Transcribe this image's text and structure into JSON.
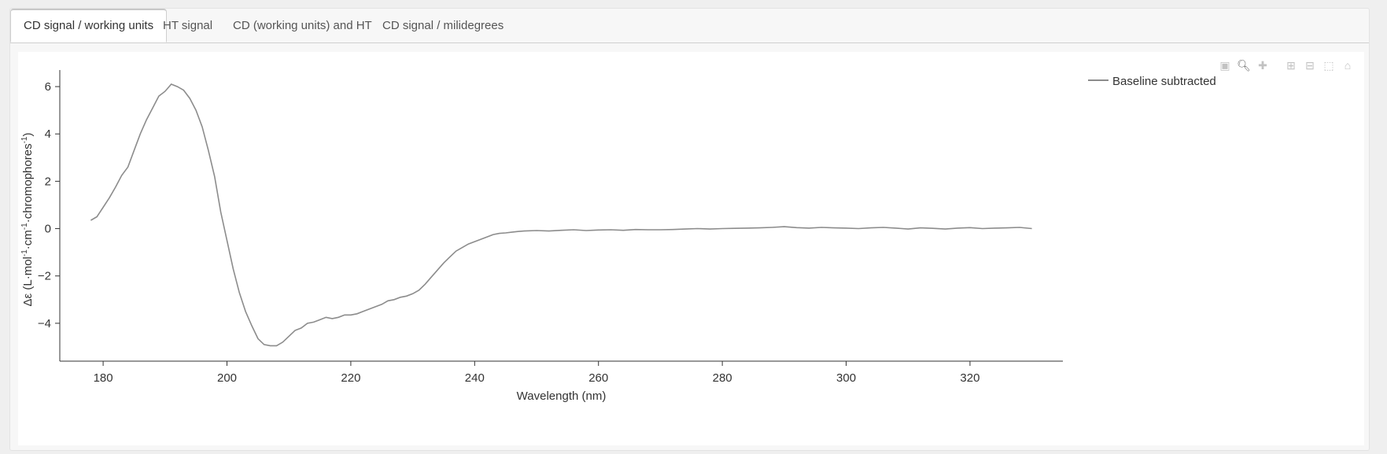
{
  "tabs": [
    {
      "label": "CD signal / working units",
      "active": true
    },
    {
      "label": "HT signal",
      "active": false
    },
    {
      "label": "CD (working units) and HT",
      "active": false
    },
    {
      "label": "CD signal / milidegrees",
      "active": false
    }
  ],
  "modebar": {
    "icons": [
      "camera-icon",
      "zoom-icon",
      "pan-icon",
      "zoom-in-icon",
      "zoom-out-icon",
      "autoscale-icon",
      "home-icon"
    ]
  },
  "chart_data": {
    "type": "line",
    "xlabel": "Wavelength (nm)",
    "ylabel_parts": [
      "Δε (L·mol",
      "-1",
      "·cm",
      "-1",
      "·chromophores",
      "-1",
      ")"
    ],
    "xlim": [
      173,
      335
    ],
    "ylim": [
      -5.6,
      6.7
    ],
    "xticks": [
      180,
      200,
      220,
      240,
      260,
      280,
      300,
      320
    ],
    "yticks": [
      -4,
      -2,
      0,
      2,
      4,
      6
    ],
    "ytick_labels": [
      "−4",
      "−2",
      "0",
      "2",
      "4",
      "6"
    ],
    "legend": {
      "position": "top-right"
    },
    "line_color": "#8c8c8c",
    "series": [
      {
        "name": "Baseline subtracted",
        "x": [
          178,
          179,
          180,
          181,
          182,
          183,
          184,
          185,
          186,
          187,
          188,
          189,
          190,
          191,
          192,
          193,
          194,
          195,
          196,
          197,
          198,
          199,
          200,
          201,
          202,
          203,
          204,
          205,
          206,
          207,
          208,
          209,
          210,
          211,
          212,
          213,
          214,
          215,
          216,
          217,
          218,
          219,
          220,
          221,
          222,
          223,
          224,
          225,
          226,
          227,
          228,
          229,
          230,
          231,
          232,
          233,
          234,
          235,
          236,
          237,
          238,
          239,
          240,
          241,
          242,
          243,
          244,
          245,
          246,
          247,
          248,
          250,
          252,
          254,
          256,
          258,
          260,
          262,
          264,
          266,
          268,
          270,
          272,
          274,
          276,
          278,
          280,
          282,
          284,
          286,
          288,
          290,
          292,
          294,
          296,
          298,
          300,
          302,
          304,
          306,
          308,
          310,
          312,
          314,
          316,
          318,
          320,
          322,
          324,
          326,
          328,
          330
        ],
        "y": [
          0.35,
          0.5,
          0.9,
          1.3,
          1.75,
          2.25,
          2.6,
          3.3,
          4.0,
          4.6,
          5.1,
          5.6,
          5.8,
          6.1,
          6.0,
          5.85,
          5.5,
          5.0,
          4.3,
          3.3,
          2.2,
          0.7,
          -0.5,
          -1.7,
          -2.7,
          -3.5,
          -4.1,
          -4.65,
          -4.9,
          -4.95,
          -4.95,
          -4.8,
          -4.55,
          -4.3,
          -4.2,
          -4.0,
          -3.95,
          -3.85,
          -3.75,
          -3.8,
          -3.75,
          -3.65,
          -3.65,
          -3.6,
          -3.5,
          -3.4,
          -3.3,
          -3.2,
          -3.05,
          -3.0,
          -2.9,
          -2.85,
          -2.75,
          -2.6,
          -2.35,
          -2.05,
          -1.75,
          -1.45,
          -1.2,
          -0.95,
          -0.8,
          -0.65,
          -0.55,
          -0.45,
          -0.35,
          -0.25,
          -0.2,
          -0.18,
          -0.15,
          -0.12,
          -0.1,
          -0.08,
          -0.1,
          -0.07,
          -0.05,
          -0.08,
          -0.06,
          -0.05,
          -0.07,
          -0.04,
          -0.05,
          -0.05,
          -0.04,
          -0.02,
          0.0,
          -0.02,
          0.0,
          0.01,
          0.02,
          0.03,
          0.05,
          0.08,
          0.04,
          0.02,
          0.05,
          0.03,
          0.02,
          0.0,
          0.03,
          0.05,
          0.02,
          -0.02,
          0.03,
          0.01,
          -0.02,
          0.02,
          0.04,
          0.0,
          0.02,
          0.03,
          0.05,
          0.0
        ]
      }
    ]
  }
}
